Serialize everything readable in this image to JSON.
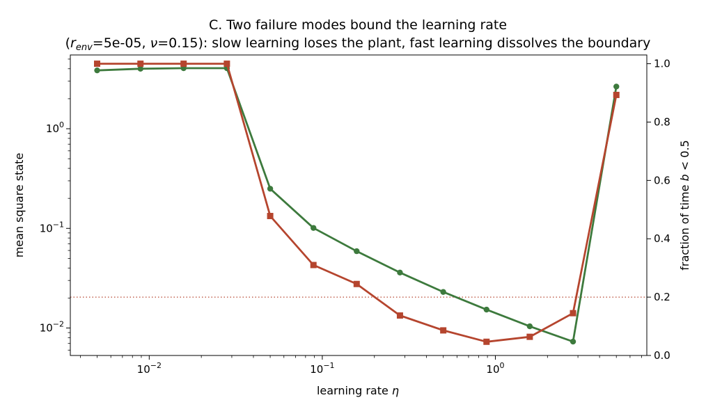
{
  "chart_data": {
    "type": "line",
    "title_line1": "C. Two failure modes bound the learning rate",
    "title_line2_pre": "(",
    "title_line2_r": "r",
    "title_line2_sub": "env",
    "title_line2_mid": "=5e-05, ",
    "title_line2_nu": "ν",
    "title_line2_post": "=0.15): slow learning loses the plant, fast learning dissolves the boundary",
    "xlabel_text": "learning rate ",
    "xlabel_sym": "η",
    "ylabel_left": "mean square state",
    "ylabel_right_pre": "fraction of time ",
    "ylabel_right_sym": "b",
    "ylabel_right_post": " < 0.5",
    "x_scale": "log",
    "xlim": [
      0.0035,
      7.5
    ],
    "x_ticks": [
      {
        "value": 0.01,
        "base": "10",
        "exp": "−2"
      },
      {
        "value": 0.1,
        "base": "10",
        "exp": "−1"
      },
      {
        "value": 1,
        "base": "10",
        "exp": "0"
      }
    ],
    "y_left_scale": "log",
    "y_left_lim": [
      0.0053,
      5.5
    ],
    "y_left_ticks": [
      {
        "value": 0.01,
        "base": "10",
        "exp": "−2"
      },
      {
        "value": 0.1,
        "base": "10",
        "exp": "−1"
      },
      {
        "value": 1,
        "base": "10",
        "exp": "0"
      }
    ],
    "y_right_lim": [
      0.0,
      1.03
    ],
    "y_right_ticks": [
      "0.0",
      "0.2",
      "0.4",
      "0.6",
      "0.8",
      "1.0"
    ],
    "x": [
      0.005,
      0.0089,
      0.0158,
      0.0281,
      0.05,
      0.0889,
      0.158,
      0.281,
      0.5,
      0.889,
      1.58,
      2.81,
      5.0
    ],
    "series": [
      {
        "axis": "left",
        "color": "#3d7a3d",
        "marker": "circle",
        "values": [
          3.85,
          4.0,
          4.05,
          4.05,
          0.25,
          0.101,
          0.059,
          0.036,
          0.023,
          0.0153,
          0.0104,
          0.0073,
          2.65
        ]
      },
      {
        "axis": "right",
        "color": "#b5452e",
        "marker": "square",
        "values": [
          1.0,
          1.0,
          1.0,
          1.0,
          0.478,
          0.31,
          0.245,
          0.137,
          0.086,
          0.047,
          0.064,
          0.145,
          0.893
        ]
      }
    ],
    "reference_line": {
      "axis": "right",
      "value": 0.2,
      "style": "dotted",
      "color": "#b5452e"
    },
    "colors": {
      "left_axis_label": "#3d7a3d",
      "right_axis_label": "#c0392b"
    }
  }
}
